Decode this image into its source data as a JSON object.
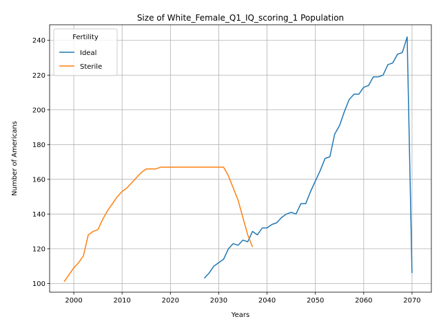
{
  "chart_data": {
    "type": "line",
    "title": "Size of White_Female_Q1_IQ_scoring_1 Population",
    "xlabel": "Years",
    "ylabel": "Number of Americans",
    "xlim": [
      1995,
      2074
    ],
    "ylim": [
      95,
      249
    ],
    "xticks": [
      2000,
      2010,
      2020,
      2030,
      2040,
      2050,
      2060,
      2070
    ],
    "yticks": [
      100,
      120,
      140,
      160,
      180,
      200,
      220,
      240
    ],
    "grid": true,
    "legend": {
      "title": "Fertility",
      "placement": "top-left"
    },
    "series": [
      {
        "name": "Ideal",
        "color": "#1f77b4",
        "x": [
          2027,
          2028,
          2029,
          2030,
          2031,
          2032,
          2033,
          2034,
          2035,
          2036,
          2037,
          2038,
          2039,
          2040,
          2041,
          2042,
          2043,
          2044,
          2045,
          2046,
          2047,
          2048,
          2049,
          2050,
          2051,
          2052,
          2053,
          2054,
          2055,
          2056,
          2057,
          2058,
          2059,
          2060,
          2061,
          2062,
          2063,
          2064,
          2065,
          2066,
          2067,
          2068,
          2069,
          2070
        ],
        "y": [
          103,
          106,
          110,
          112,
          114,
          120,
          123,
          122,
          125,
          124,
          130,
          128,
          132,
          132,
          134,
          135,
          138,
          140,
          141,
          140,
          146,
          146,
          153,
          159,
          165,
          172,
          173,
          186,
          191,
          199,
          206,
          209,
          209,
          213,
          214,
          219,
          219,
          220,
          226,
          227,
          232,
          233,
          242,
          106
        ]
      },
      {
        "name": "Sterile",
        "color": "#ff7f0e",
        "x": [
          1998,
          1999,
          2000,
          2001,
          2002,
          2003,
          2004,
          2005,
          2006,
          2007,
          2008,
          2009,
          2010,
          2011,
          2012,
          2013,
          2014,
          2015,
          2016,
          2017,
          2018,
          2019,
          2020,
          2021,
          2022,
          2023,
          2024,
          2025,
          2026,
          2027,
          2028,
          2029,
          2030,
          2031,
          2032,
          2033,
          2034,
          2035,
          2036,
          2037
        ],
        "y": [
          101,
          105,
          109,
          112,
          116,
          128,
          130,
          131,
          137,
          142,
          146,
          150,
          153,
          155,
          158,
          161,
          164,
          166,
          166,
          166,
          167,
          167,
          167,
          167,
          167,
          167,
          167,
          167,
          167,
          167,
          167,
          167,
          167,
          167,
          162,
          155,
          148,
          138,
          128,
          121
        ]
      }
    ]
  }
}
